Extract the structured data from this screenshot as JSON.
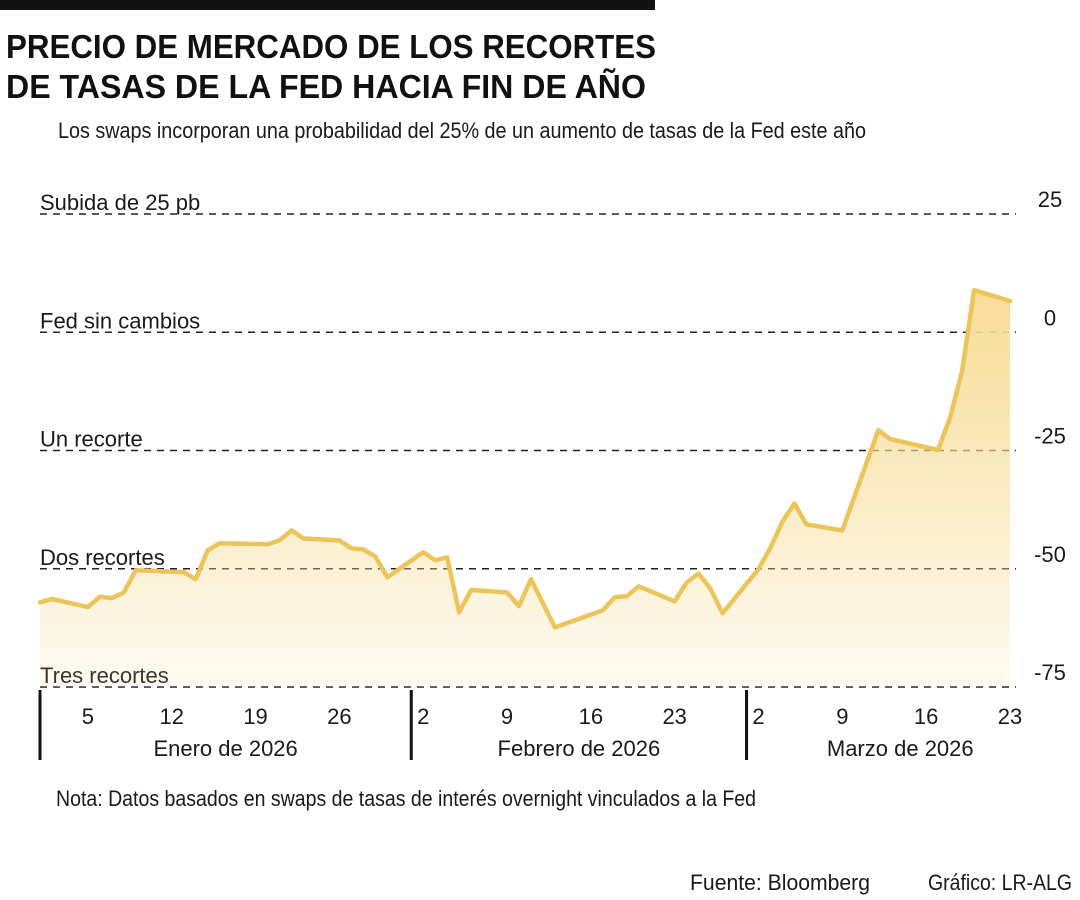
{
  "chart_data": {
    "type": "area",
    "title_lines": [
      "PRECIO DE MERCADO DE LOS RECORTES",
      "DE TASAS DE LA FED HACIA FIN DE AÑO"
    ],
    "subtitle": "Los swaps incorporan una probabilidad del 25% de un aumento de tasas de la Fed este año",
    "note": "Nota: Datos basados en swaps de tasas de interés overnight vinculados a la Fed",
    "source": "Fuente: Bloomberg",
    "credit": "Gráfico: LR-ALG",
    "color": "#ecc45a",
    "area_color": "#f7dc95",
    "x": [
      "2026-01-01",
      "2026-01-02",
      "2026-01-05",
      "2026-01-06",
      "2026-01-07",
      "2026-01-08",
      "2026-01-09",
      "2026-01-13",
      "2026-01-14",
      "2026-01-15",
      "2026-01-16",
      "2026-01-20",
      "2026-01-21",
      "2026-01-22",
      "2026-01-23",
      "2026-01-26",
      "2026-01-27",
      "2026-01-28",
      "2026-01-29",
      "2026-01-30",
      "2026-02-02",
      "2026-02-03",
      "2026-02-04",
      "2026-02-05",
      "2026-02-06",
      "2026-02-09",
      "2026-02-10",
      "2026-02-11",
      "2026-02-13",
      "2026-02-17",
      "2026-02-18",
      "2026-02-19",
      "2026-02-20",
      "2026-02-23",
      "2026-02-24",
      "2026-02-25",
      "2026-02-26",
      "2026-02-27",
      "2026-03-02",
      "2026-03-03",
      "2026-03-04",
      "2026-03-05",
      "2026-03-06",
      "2026-03-09",
      "2026-03-12",
      "2026-03-13",
      "2026-03-17",
      "2026-03-18",
      "2026-03-19",
      "2026-03-20",
      "2026-03-23"
    ],
    "values": [
      -57.1,
      -56.4,
      -58.1,
      -55.9,
      -56.2,
      -55.0,
      -50.3,
      -50.7,
      -52.2,
      -46.1,
      -44.6,
      -44.8,
      -44.0,
      -41.9,
      -43.6,
      -44.0,
      -45.7,
      -45.9,
      -47.4,
      -51.8,
      -46.5,
      -48.2,
      -47.6,
      -59.2,
      -54.5,
      -55.0,
      -57.9,
      -52.2,
      -62.4,
      -58.8,
      -56.0,
      -55.8,
      -53.7,
      -56.9,
      -52.9,
      -51.0,
      -54.3,
      -59.4,
      -50.1,
      -45.5,
      -40.0,
      -36.2,
      -40.6,
      -41.9,
      -20.7,
      -22.6,
      -24.9,
      -18.0,
      -8.2,
      8.9,
      6.6
    ],
    "xlim": [
      "2026-01-01",
      "2026-03-23"
    ],
    "xticks": [
      {
        "value": "2026-01-05",
        "label": "5"
      },
      {
        "value": "2026-01-12",
        "label": "12"
      },
      {
        "value": "2026-01-19",
        "label": "19"
      },
      {
        "value": "2026-01-26",
        "label": "26"
      },
      {
        "value": "2026-02-02",
        "label": "2"
      },
      {
        "value": "2026-02-09",
        "label": "9"
      },
      {
        "value": "2026-02-16",
        "label": "16"
      },
      {
        "value": "2026-02-23",
        "label": "23"
      },
      {
        "value": "2026-03-02",
        "label": "2"
      },
      {
        "value": "2026-03-09",
        "label": "9"
      },
      {
        "value": "2026-03-16",
        "label": "16"
      },
      {
        "value": "2026-03-23",
        "label": "23"
      }
    ],
    "months": [
      {
        "label": "Enero de 2026",
        "start": "2026-01-01"
      },
      {
        "label": "Febrero de 2026",
        "start": "2026-02-01"
      },
      {
        "label": "Marzo de 2026",
        "start": "2026-03-01"
      }
    ],
    "ylim": [
      -75,
      25
    ],
    "yticks": [
      25,
      0,
      -25,
      -50,
      -75
    ],
    "level_labels": [
      "Subida de 25 pb",
      "Fed sin cambios",
      "Un recorte",
      "Dos recortes",
      "Tres recortes"
    ],
    "grid": true
  }
}
